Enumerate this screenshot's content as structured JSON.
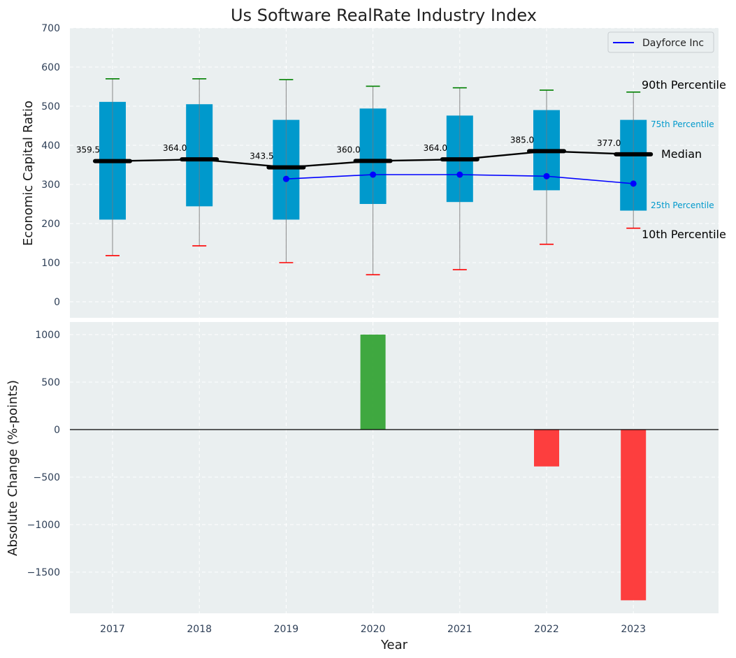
{
  "chart_data": [
    {
      "type": "box",
      "title": "Us Software RealRate Industry Index",
      "ylabel": "Economic Capital Ratio",
      "ylim": [
        -50,
        700
      ],
      "yticks": [
        0,
        100,
        200,
        300,
        400,
        500,
        600,
        700
      ],
      "categories": [
        "2017",
        "2018",
        "2019",
        "2020",
        "2021",
        "2022",
        "2023"
      ],
      "p10": [
        118,
        143,
        100,
        69,
        82,
        147,
        188
      ],
      "p25": [
        210,
        244,
        210,
        250,
        255,
        285,
        233
      ],
      "median": [
        359.5,
        364.0,
        343.5,
        360.0,
        364.0,
        385.0,
        377.0
      ],
      "median_labels": [
        "359.5",
        "364.0",
        "343.5",
        "360.0",
        "364.0",
        "385.0",
        "377.0"
      ],
      "p75": [
        511,
        505,
        465,
        494,
        476,
        490,
        465
      ],
      "p90": [
        570,
        570,
        568,
        551,
        547,
        541,
        536
      ],
      "series": [
        {
          "name": "Dayforce Inc",
          "values": [
            null,
            null,
            314,
            325,
            325,
            321,
            302
          ],
          "color": "#0000ff"
        }
      ],
      "percentile_labels": {
        "p90": "90th Percentile",
        "p75": "75th Percentile",
        "median": "Median",
        "p25": "25th Percentile",
        "p10": "10th Percentile"
      },
      "legend_position": "top-right",
      "grid": true
    },
    {
      "type": "bar",
      "xlabel": "Year",
      "ylabel": "Absolute Change (%-points)",
      "ylim": [
        -1930,
        1130
      ],
      "yticks": [
        -1500,
        -1000,
        -500,
        0,
        500,
        1000
      ],
      "ytick_labels": [
        "−1500",
        "−1000",
        "−500",
        "0",
        "500",
        "1000"
      ],
      "categories": [
        "2017",
        "2018",
        "2019",
        "2020",
        "2021",
        "2022",
        "2023"
      ],
      "values": [
        null,
        null,
        null,
        1000,
        null,
        -388,
        -1797
      ],
      "positive_color": "#2ca02c",
      "negative_color": "#ff2a2a",
      "grid": true
    }
  ],
  "colors": {
    "plot_bg": "#eaeff0",
    "box_fill": "#0099cc",
    "median_line": "#000000",
    "whisker": "#888888",
    "p90_cap": "#008000",
    "p10_cap": "#ff0000"
  }
}
